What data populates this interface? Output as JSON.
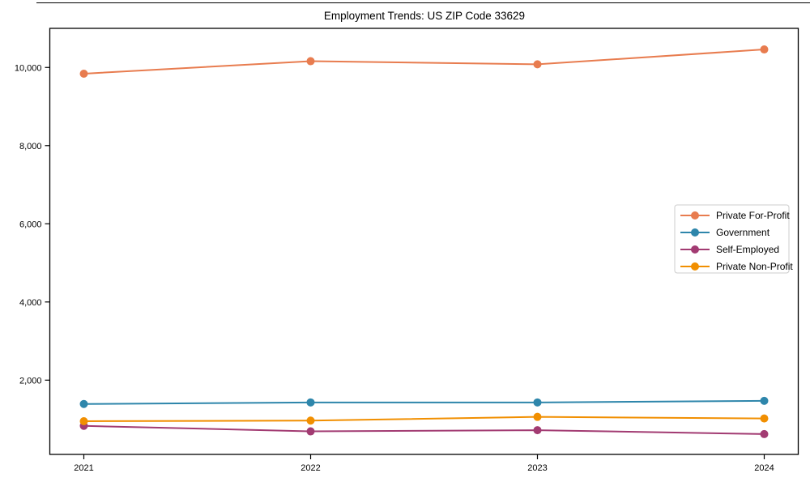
{
  "chart_data": {
    "type": "line",
    "title": "Employment Trends: US ZIP Code 33629",
    "xlabel": "",
    "ylabel": "",
    "x": [
      2021,
      2022,
      2023,
      2024
    ],
    "x_tick_labels": [
      "2021",
      "2022",
      "2023",
      "2024"
    ],
    "y_tick_values": [
      2000,
      4000,
      6000,
      8000,
      10000
    ],
    "y_tick_labels": [
      "2,000",
      "4,000",
      "6,000",
      "8,000",
      "10,000"
    ],
    "xlim": [
      2020.85,
      2024.15
    ],
    "ylim": [
      100,
      11000
    ],
    "grid": false,
    "legend_position": "center-right",
    "series": [
      {
        "name": "Private For-Profit",
        "color": "#E87C4F",
        "values": [
          9840,
          10160,
          10080,
          10460
        ]
      },
      {
        "name": "Government",
        "color": "#2E86AB",
        "values": [
          1390,
          1430,
          1430,
          1470
        ]
      },
      {
        "name": "Self-Employed",
        "color": "#A23B72",
        "values": [
          830,
          690,
          720,
          620
        ]
      },
      {
        "name": "Private Non-Profit",
        "color": "#F18F01",
        "values": [
          950,
          965,
          1060,
          1020
        ]
      }
    ],
    "axis_color": "#000000",
    "background_color": "#ffffff",
    "legend_border_color": "#cccccc"
  }
}
